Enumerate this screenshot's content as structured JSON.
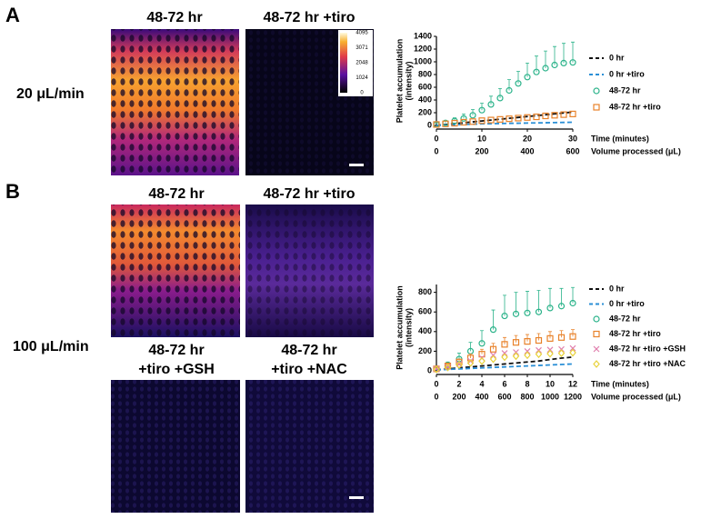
{
  "panels": [
    {
      "label": "A",
      "rate": "20 μL/min",
      "images": [
        {
          "title": [
            "48-72 hr"
          ]
        },
        {
          "title": [
            "48-72 hr +tiro"
          ]
        }
      ]
    },
    {
      "label": "B",
      "rate": "100 μL/min",
      "images": [
        {
          "title": [
            "48-72 hr"
          ]
        },
        {
          "title": [
            "48-72 hr +tiro"
          ]
        },
        {
          "title": [
            "48-72 hr",
            "+tiro +GSH"
          ]
        },
        {
          "title": [
            "48-72 hr",
            "+tiro +NAC"
          ]
        }
      ]
    }
  ],
  "colorbar": {
    "ticks": [
      4095,
      3071,
      2048,
      1024,
      0
    ]
  },
  "chart_data": [
    {
      "type": "line",
      "ylabel": [
        "Platelet accumulation",
        "(intensity)"
      ],
      "xlabel": "Time (minutes)",
      "x2label": "Volume processed (μL)",
      "x": [
        0,
        2,
        4,
        6,
        8,
        10,
        12,
        14,
        16,
        18,
        20,
        22,
        24,
        26,
        28,
        30
      ],
      "xlim": [
        0,
        30
      ],
      "xticks": [
        0,
        10,
        20,
        30
      ],
      "x2lim": [
        0,
        600
      ],
      "x2ticks": [
        0,
        200,
        400,
        600
      ],
      "ylim": [
        0,
        1400
      ],
      "yticks": [
        0,
        200,
        400,
        600,
        800,
        1000,
        1200,
        1400
      ],
      "series": [
        {
          "name": "0 hr",
          "color": "#111111",
          "style": "dashed",
          "values": [
            0,
            14,
            28,
            42,
            56,
            70,
            84,
            98,
            112,
            126,
            140,
            154,
            168,
            182,
            196,
            210
          ]
        },
        {
          "name": "0 hr +tiro",
          "color": "#2a8fd6",
          "style": "dashed",
          "values": [
            0,
            5,
            10,
            15,
            20,
            25,
            28,
            30,
            33,
            35,
            38,
            40,
            42,
            45,
            47,
            50
          ]
        },
        {
          "name": "48-72 hr",
          "color": "#2bb38a",
          "style": "circle",
          "values": [
            20,
            40,
            70,
            110,
            160,
            240,
            330,
            430,
            550,
            660,
            760,
            840,
            900,
            950,
            980,
            990
          ],
          "errors": [
            20,
            30,
            50,
            70,
            90,
            110,
            130,
            150,
            170,
            190,
            220,
            250,
            270,
            290,
            310,
            320
          ]
        },
        {
          "name": "48-72 hr +tiro",
          "color": "#e8822a",
          "style": "square",
          "values": [
            15,
            25,
            35,
            50,
            60,
            75,
            85,
            95,
            105,
            115,
            125,
            135,
            150,
            160,
            170,
            180
          ]
        }
      ]
    },
    {
      "type": "line",
      "ylabel": [
        "Platelet accumulation",
        "(intensity)"
      ],
      "xlabel": "Time (minutes)",
      "x2label": "Volume processed (μL)",
      "x": [
        0,
        1,
        2,
        3,
        4,
        5,
        6,
        7,
        8,
        9,
        10,
        11,
        12
      ],
      "xlim": [
        0,
        12
      ],
      "xticks": [
        0,
        2,
        4,
        6,
        8,
        10,
        12
      ],
      "x2lim": [
        0,
        1200
      ],
      "x2ticks": [
        0,
        200,
        400,
        600,
        800,
        1000,
        1200
      ],
      "ylim": [
        0,
        880
      ],
      "yticks": [
        0,
        200,
        400,
        600,
        800
      ],
      "series": [
        {
          "name": "0 hr",
          "color": "#111111",
          "style": "dashed",
          "values": [
            10,
            20,
            30,
            40,
            50,
            60,
            70,
            80,
            90,
            100,
            115,
            130,
            140
          ]
        },
        {
          "name": "0 hr +tiro",
          "color": "#2a8fd6",
          "style": "dashed",
          "values": [
            10,
            15,
            20,
            25,
            30,
            35,
            40,
            45,
            50,
            55,
            60,
            65,
            70
          ]
        },
        {
          "name": "48-72 hr",
          "color": "#2bb38a",
          "style": "circle",
          "values": [
            20,
            60,
            120,
            200,
            280,
            420,
            560,
            580,
            590,
            600,
            640,
            660,
            690
          ],
          "errors": [
            10,
            30,
            60,
            90,
            130,
            200,
            210,
            220,
            220,
            220,
            200,
            180,
            160
          ]
        },
        {
          "name": "48-72 hr +tiro",
          "color": "#e8822a",
          "style": "square",
          "values": [
            20,
            50,
            90,
            130,
            170,
            220,
            270,
            290,
            300,
            310,
            330,
            340,
            350
          ],
          "errors": [
            10,
            20,
            30,
            40,
            50,
            60,
            70,
            70,
            70,
            70,
            70,
            70,
            70
          ]
        },
        {
          "name": "48-72 hr +tiro +GSH",
          "color": "#e07fae",
          "style": "cross",
          "values": [
            20,
            40,
            70,
            100,
            130,
            160,
            180,
            190,
            200,
            210,
            215,
            220,
            230
          ]
        },
        {
          "name": "48-72 hr +tiro +NAC",
          "color": "#e8d23a",
          "style": "diamond",
          "values": [
            15,
            35,
            60,
            80,
            100,
            120,
            140,
            150,
            160,
            170,
            175,
            180,
            185
          ]
        }
      ]
    }
  ]
}
